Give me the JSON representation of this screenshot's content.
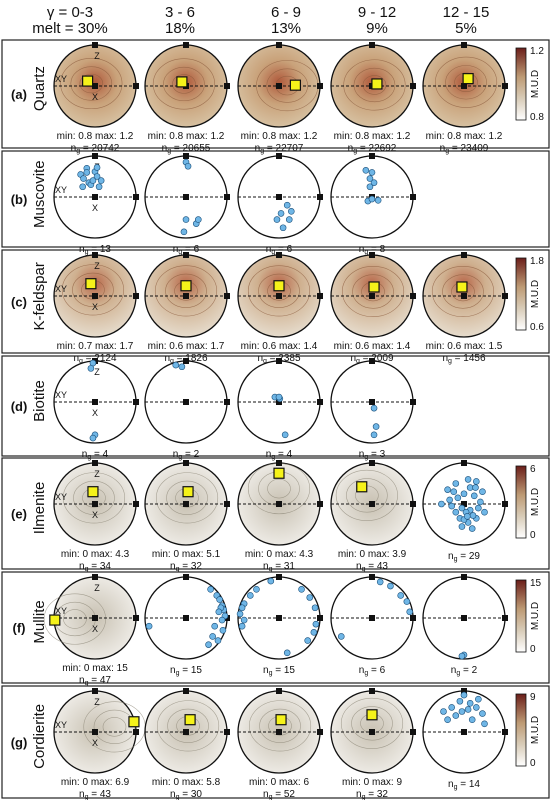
{
  "header": {
    "row1": [
      "γ = 0-3",
      "3 - 6",
      "6 - 9",
      "9 - 12",
      "12 - 15"
    ],
    "row2": [
      "melt = 30%",
      "18%",
      "13%",
      "9%",
      "5%"
    ]
  },
  "rows": [
    {
      "letter": "(a)",
      "mineral": "Quartz",
      "type": "contour",
      "colorbar": {
        "max": "1.2",
        "min": "0.8",
        "label": "M.U.D"
      },
      "cells": [
        {
          "minmax": "min: 0.8  max: 1.2",
          "ng": "20742",
          "yellow": [
            -0.18,
            -0.12
          ]
        },
        {
          "minmax": "min: 0.8  max: 1.2",
          "ng": "20655",
          "yellow": [
            -0.1,
            -0.1
          ]
        },
        {
          "minmax": "min: 0.8  max: 1.2",
          "ng": "22707",
          "yellow": [
            0.4,
            -0.02
          ]
        },
        {
          "minmax": "min: 0.8  max: 1.2",
          "ng": "22692",
          "yellow": [
            0.12,
            -0.05
          ]
        },
        {
          "minmax": "min: 0.8  max: 1.2",
          "ng": "23409",
          "yellow": [
            0.1,
            -0.18
          ]
        }
      ]
    },
    {
      "letter": "(b)",
      "mineral": "Muscovite",
      "type": "points",
      "cells": [
        {
          "ng": "13",
          "points": [
            [
              -0.35,
              -0.55
            ],
            [
              -0.2,
              -0.7
            ],
            [
              0.0,
              -0.62
            ],
            [
              -0.28,
              -0.45
            ],
            [
              -0.15,
              -0.35
            ],
            [
              0.05,
              -0.5
            ],
            [
              -0.3,
              -0.25
            ],
            [
              -0.1,
              -0.3
            ],
            [
              0.1,
              -0.25
            ],
            [
              -0.2,
              -0.6
            ],
            [
              0.05,
              -0.72
            ],
            [
              -0.05,
              -0.4
            ],
            [
              0.15,
              -0.4
            ]
          ]
        },
        {
          "ng": "6",
          "points": [
            [
              0.0,
              -0.85
            ],
            [
              0.05,
              -0.75
            ],
            [
              0.0,
              0.55
            ],
            [
              0.25,
              0.65
            ],
            [
              0.3,
              0.55
            ],
            [
              -0.05,
              0.85
            ]
          ]
        },
        {
          "ng": "6",
          "points": [
            [
              0.2,
              0.2
            ],
            [
              0.3,
              0.35
            ],
            [
              0.25,
              0.55
            ],
            [
              -0.05,
              0.55
            ],
            [
              0.1,
              0.75
            ],
            [
              0.05,
              0.4
            ]
          ]
        },
        {
          "ng": "8",
          "points": [
            [
              0.0,
              -0.6
            ],
            [
              -0.15,
              -0.65
            ],
            [
              -0.05,
              -0.45
            ],
            [
              0.05,
              -0.35
            ],
            [
              -0.1,
              0.1
            ],
            [
              0.15,
              0.08
            ],
            [
              0.0,
              0.05
            ],
            [
              -0.05,
              -0.25
            ]
          ]
        }
      ]
    },
    {
      "letter": "(c)",
      "mineral": "K-feldspar",
      "type": "contour",
      "colorbar": {
        "max": "1.8",
        "min": "0.6",
        "label": "M.U.D"
      },
      "cells": [
        {
          "minmax": "min: 0.7  max: 1.7",
          "ng": "2124",
          "yellow": [
            -0.1,
            -0.3
          ]
        },
        {
          "minmax": "min: 0.6  max: 1.7",
          "ng": "1826",
          "yellow": [
            0.0,
            -0.25
          ]
        },
        {
          "minmax": "min: 0.6  max: 1.4",
          "ng": "2385",
          "yellow": [
            0.0,
            -0.25
          ]
        },
        {
          "minmax": "min: 0.6  max: 1.4",
          "ng": "2009",
          "yellow": [
            0.05,
            -0.22
          ]
        },
        {
          "minmax": "min: 0.6  max: 1.5",
          "ng": "1456",
          "yellow": [
            -0.05,
            -0.22
          ]
        }
      ]
    },
    {
      "letter": "(d)",
      "mineral": "Biotite",
      "type": "points",
      "cells": [
        {
          "ng": "4",
          "points": [
            [
              -0.05,
              -0.95
            ],
            [
              -0.1,
              -0.82
            ],
            [
              0.0,
              0.8
            ],
            [
              -0.05,
              0.88
            ]
          ]
        },
        {
          "ng": "2",
          "points": [
            [
              -0.25,
              -0.9
            ],
            [
              -0.1,
              -0.86
            ]
          ]
        },
        {
          "ng": "4",
          "points": [
            [
              -0.1,
              -0.12
            ],
            [
              0.02,
              -0.08
            ],
            [
              0.0,
              -0.12
            ],
            [
              0.15,
              0.8
            ]
          ]
        },
        {
          "ng": "3",
          "points": [
            [
              0.05,
              0.15
            ],
            [
              0.1,
              0.6
            ],
            [
              0.05,
              0.8
            ]
          ]
        }
      ]
    },
    {
      "letter": "(e)",
      "mineral": "Ilmenite",
      "type": "contour-gray",
      "colorbar": {
        "max": "6",
        "min": "0",
        "label": "M.U.D"
      },
      "cells": [
        {
          "minmax": "min: 0  max: 4.3",
          "ng": "34",
          "yellow": [
            -0.05,
            -0.3
          ]
        },
        {
          "minmax": "min: 0  max: 5.1",
          "ng": "32",
          "yellow": [
            0.05,
            -0.3
          ]
        },
        {
          "minmax": "min: 0  max: 4.3",
          "ng": "31",
          "yellow": [
            0.0,
            -0.75
          ]
        },
        {
          "minmax": "min: 0  max: 3.9",
          "ng": "43",
          "yellow": [
            -0.25,
            -0.42
          ]
        },
        {
          "ng": "29",
          "points": [
            [
              -0.4,
              -0.35
            ],
            [
              -0.2,
              -0.5
            ],
            [
              0.1,
              -0.6
            ],
            [
              0.3,
              -0.55
            ],
            [
              0.45,
              -0.3
            ],
            [
              -0.55,
              0.0
            ],
            [
              -0.3,
              0.05
            ],
            [
              0.25,
              -0.2
            ],
            [
              0.0,
              -0.25
            ],
            [
              0.15,
              0.15
            ],
            [
              0.3,
              0.35
            ],
            [
              0.1,
              0.45
            ],
            [
              -0.1,
              0.35
            ],
            [
              0.05,
              0.2
            ],
            [
              -0.2,
              0.2
            ],
            [
              -0.05,
              0.55
            ],
            [
              0.2,
              0.6
            ],
            [
              0.35,
              0.1
            ],
            [
              -0.35,
              -0.1
            ],
            [
              0.4,
              -0.05
            ],
            [
              -0.15,
              -0.15
            ],
            [
              0.15,
              -0.4
            ],
            [
              0.5,
              0.2
            ],
            [
              0.0,
              0.38
            ],
            [
              0.22,
              0.28
            ],
            [
              -0.25,
              -0.3
            ],
            [
              0.08,
              0.3
            ],
            [
              0.28,
              -0.4
            ],
            [
              -0.05,
              0.1
            ]
          ]
        }
      ]
    },
    {
      "letter": "(f)",
      "mineral": "Mullite",
      "type": "contour-gray",
      "colorbar": {
        "max": "15",
        "min": "0",
        "label": "M.U.D"
      },
      "cells": [
        {
          "minmax": "min: 0  max: 15",
          "ng": "47",
          "yellow": [
            -0.98,
            0.05
          ]
        },
        {
          "ng": "15",
          "points": [
            [
              0.75,
              -0.55
            ],
            [
              0.82,
              -0.45
            ],
            [
              0.88,
              -0.3
            ],
            [
              0.92,
              -0.2
            ],
            [
              0.85,
              -0.25
            ],
            [
              0.95,
              -0.05
            ],
            [
              0.8,
              -0.15
            ],
            [
              0.88,
              0.05
            ],
            [
              0.7,
              0.2
            ],
            [
              0.65,
              0.45
            ],
            [
              0.78,
              0.55
            ],
            [
              0.55,
              0.65
            ],
            [
              -0.9,
              0.2
            ],
            [
              0.6,
              -0.7
            ],
            [
              0.9,
              0.3
            ]
          ]
        },
        {
          "ng": "15",
          "points": [
            [
              -0.55,
              -0.7
            ],
            [
              -0.7,
              -0.55
            ],
            [
              -0.85,
              -0.35
            ],
            [
              -0.9,
              -0.25
            ],
            [
              -0.95,
              -0.1
            ],
            [
              -0.85,
              0.05
            ],
            [
              -0.9,
              0.2
            ],
            [
              0.55,
              -0.7
            ],
            [
              0.75,
              -0.5
            ],
            [
              0.88,
              -0.25
            ],
            [
              0.9,
              0.15
            ],
            [
              0.85,
              0.35
            ],
            [
              0.7,
              0.55
            ],
            [
              0.2,
              0.85
            ],
            [
              -0.2,
              -0.9
            ]
          ]
        },
        {
          "ng": "6",
          "points": [
            [
              0.45,
              -0.78
            ],
            [
              0.7,
              -0.55
            ],
            [
              0.85,
              -0.4
            ],
            [
              0.92,
              -0.15
            ],
            [
              -0.75,
              0.45
            ],
            [
              0.2,
              -0.88
            ]
          ]
        },
        {
          "ng": "2",
          "points": [
            [
              0.0,
              0.9
            ],
            [
              -0.05,
              0.93
            ]
          ]
        }
      ]
    },
    {
      "letter": "(g)",
      "mineral": "Cordierite",
      "type": "contour-gray",
      "colorbar": {
        "max": "9",
        "min": "0",
        "label": "M.U.D"
      },
      "cells": [
        {
          "minmax": "min: 0  max: 6.9",
          "ng": "43",
          "yellow": [
            0.95,
            -0.25
          ]
        },
        {
          "minmax": "min: 0  max: 5.8",
          "ng": "30",
          "yellow": [
            0.1,
            -0.3
          ]
        },
        {
          "minmax": "min: 0  max: 6",
          "ng": "52",
          "yellow": [
            0.05,
            -0.3
          ]
        },
        {
          "minmax": "min: 0  max: 9",
          "ng": "32",
          "yellow": [
            0.0,
            -0.42
          ]
        },
        {
          "ng": "14",
          "points": [
            [
              -0.5,
              -0.5
            ],
            [
              -0.3,
              -0.6
            ],
            [
              -0.1,
              -0.75
            ],
            [
              0.1,
              -0.55
            ],
            [
              0.3,
              -0.6
            ],
            [
              0.45,
              -0.45
            ],
            [
              -0.4,
              -0.3
            ],
            [
              0.2,
              -0.3
            ],
            [
              0.5,
              -0.2
            ],
            [
              0.0,
              -0.9
            ],
            [
              -0.2,
              -0.4
            ],
            [
              0.35,
              -0.8
            ],
            [
              0.15,
              -0.7
            ],
            [
              -0.05,
              -0.5
            ]
          ]
        }
      ]
    }
  ],
  "axis_labels": {
    "z": "Z",
    "x": "X",
    "xy": "XY",
    "ng_prefix": "n",
    "ng_sub": "g",
    "ng_eq": " = "
  }
}
